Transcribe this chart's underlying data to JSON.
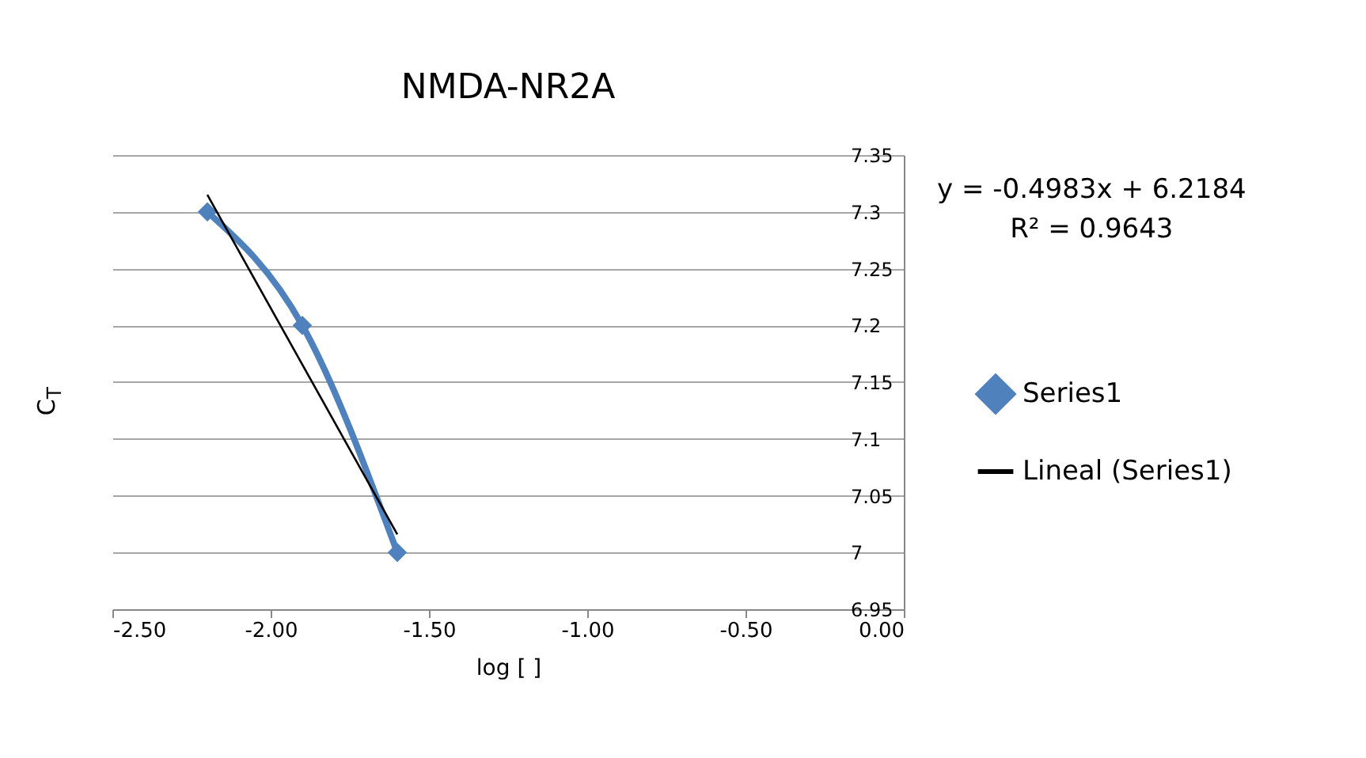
{
  "chart_data": {
    "type": "line",
    "title": "NMDA-NR2A",
    "xlabel": "log [ ]",
    "ylabel": "C$_{T}$",
    "annotations": [
      "y = -0.4983x + 6.2184",
      "R² = 0.9643"
    ],
    "series": [
      {
        "name": "Series1",
        "color": "#4f81bd",
        "x": [
          -2.2,
          -1.9,
          -1.6
        ],
        "values": [
          7.3,
          7.2,
          7.0
        ],
        "marker": "diamond"
      },
      {
        "name": "Lineal (Series1)",
        "color": "#000000",
        "x": [
          -2.2,
          -1.6
        ],
        "values": [
          7.315,
          7.016
        ],
        "marker": "none"
      }
    ],
    "xlim": [
      -2.5,
      0
    ],
    "xticks": [
      {
        "value": -2.5,
        "label": "-2.50"
      },
      {
        "value": -2,
        "label": "-2.00"
      },
      {
        "value": -1.5,
        "label": "-1.50"
      },
      {
        "value": -1,
        "label": "-1.00"
      },
      {
        "value": -0.5,
        "label": "-0.50"
      },
      {
        "value": 0,
        "label": "0.00"
      }
    ],
    "ylim": [
      6.95,
      7.35
    ],
    "yticks": [
      6.95,
      7,
      7.05,
      7.1,
      7.15,
      7.2,
      7.25,
      7.3,
      7.35
    ],
    "grid": "y",
    "legend": "right"
  }
}
